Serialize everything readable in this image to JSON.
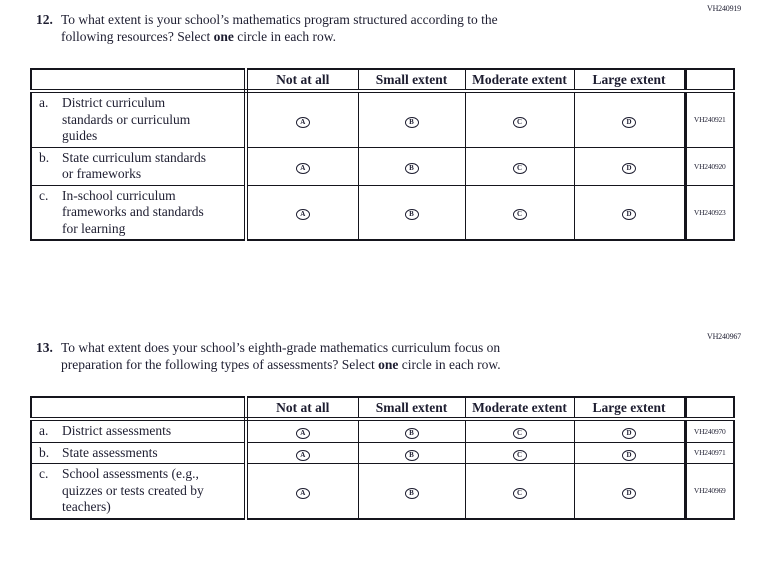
{
  "ink_color": "#1d1d30",
  "border_color": "#15151d",
  "questions": [
    {
      "number": "12.",
      "code": "VH240919",
      "line1": "To what extent is your school’s mathematics program structured according to the",
      "line2_pre": "following resources? Select ",
      "line2_bold": "one",
      "line2_post": " circle in each row.",
      "columns": [
        "Not at all",
        "Small extent",
        "Moderate extent",
        "Large extent"
      ],
      "answer_letters": [
        "A",
        "B",
        "C",
        "D"
      ],
      "rows": [
        {
          "letter": "a.",
          "label": "District curriculum standards or curriculum guides",
          "code": "VH240921"
        },
        {
          "letter": "b.",
          "label": "State curriculum standards or frameworks",
          "code": "VH240920"
        },
        {
          "letter": "c.",
          "label": "In-school curriculum frameworks and standards for learning",
          "code": "VH240923"
        }
      ]
    },
    {
      "number": "13.",
      "code": "VH240967",
      "line1": "To what extent does your school’s eighth-grade mathematics curriculum focus on",
      "line2_pre": "preparation for the following types of assessments? Select ",
      "line2_bold": "one",
      "line2_post": " circle in each row.",
      "columns": [
        "Not at all",
        "Small extent",
        "Moderate extent",
        "Large extent"
      ],
      "answer_letters": [
        "A",
        "B",
        "C",
        "D"
      ],
      "rows": [
        {
          "letter": "a.",
          "label": "District assessments",
          "code": "VH240970"
        },
        {
          "letter": "b.",
          "label": "State assessments",
          "code": "VH240971"
        },
        {
          "letter": "c.",
          "label": "School assessments (e.g., quizzes or tests created by teachers)",
          "code": "VH240969"
        }
      ]
    }
  ]
}
